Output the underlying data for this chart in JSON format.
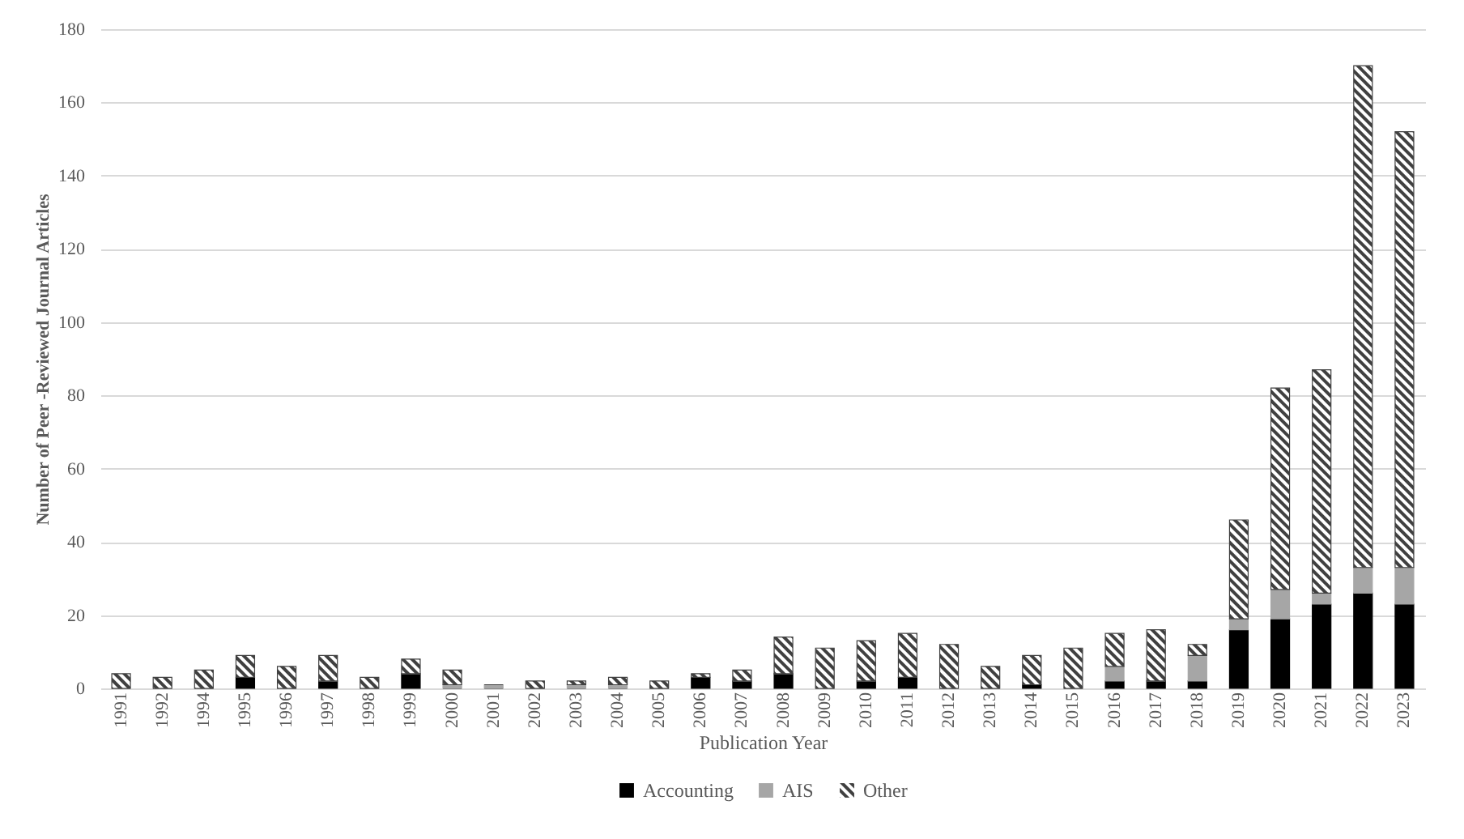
{
  "chart_data": {
    "type": "bar",
    "stacked": true,
    "xlabel": "Publication Year",
    "ylabel": "Number of Peer -Reviewed Journal Articles",
    "categories": [
      "1991",
      "1992",
      "1994",
      "1995",
      "1996",
      "1997",
      "1998",
      "1999",
      "2000",
      "2001",
      "2002",
      "2003",
      "2004",
      "2005",
      "2006",
      "2007",
      "2008",
      "2009",
      "2010",
      "2011",
      "2012",
      "2013",
      "2014",
      "2015",
      "2016",
      "2017",
      "2018",
      "2019",
      "2020",
      "2021",
      "2022",
      "2023"
    ],
    "series": [
      {
        "name": "Accounting",
        "color": "#000000",
        "values": [
          0,
          0,
          0,
          3,
          0,
          2,
          0,
          4,
          0,
          0,
          0,
          0,
          0,
          0,
          3,
          2,
          4,
          0,
          2,
          3,
          0,
          0,
          1,
          0,
          2,
          2,
          2,
          16,
          19,
          23,
          26,
          23
        ]
      },
      {
        "name": "AIS",
        "color": "#a6a6a6",
        "values": [
          0,
          0,
          0,
          0,
          0,
          0,
          0,
          0,
          1,
          1,
          0,
          1,
          1,
          0,
          0,
          0,
          0,
          0,
          0,
          0,
          0,
          0,
          0,
          0,
          4,
          0,
          7,
          3,
          8,
          3,
          7,
          10
        ]
      },
      {
        "name": "Other",
        "color": "#404040",
        "values": [
          4,
          3,
          5,
          6,
          6,
          7,
          3,
          4,
          4,
          0,
          2,
          1,
          2,
          2,
          1,
          3,
          10,
          11,
          11,
          12,
          12,
          6,
          8,
          11,
          9,
          14,
          3,
          27,
          55,
          61,
          137,
          119
        ]
      }
    ],
    "ylim": [
      0,
      180
    ],
    "yticks": [
      0,
      20,
      40,
      60,
      80,
      100,
      120,
      140,
      160,
      180
    ],
    "grid": "y",
    "legend": "bottom"
  }
}
